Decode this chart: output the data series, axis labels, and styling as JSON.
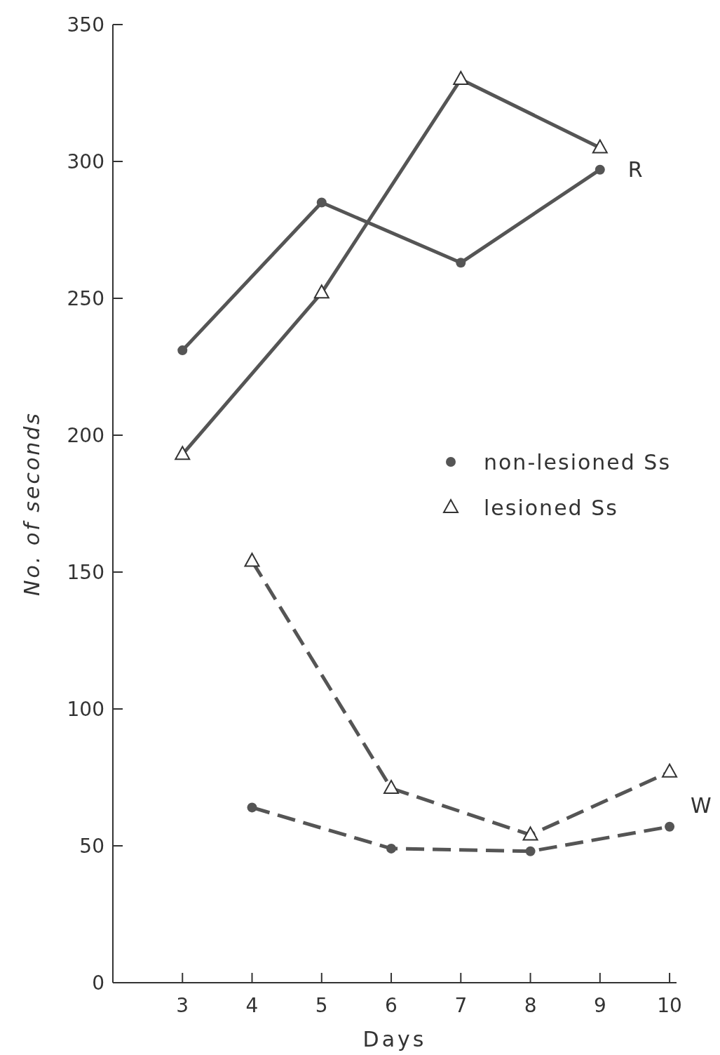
{
  "chart_data": {
    "type": "line",
    "xlabel": "Days",
    "ylabel": "No. of seconds",
    "xlim": [
      2,
      10.1
    ],
    "xticks": [
      3,
      4,
      5,
      6,
      7,
      8,
      9,
      10
    ],
    "ylim": [
      0,
      350
    ],
    "yticks": [
      0,
      50,
      100,
      150,
      200,
      250,
      300,
      350
    ],
    "grid": false,
    "legend": "right",
    "series": [
      {
        "name": "non-lesioned Ss",
        "color": "#555555",
        "marker": "circle",
        "line_style": "solid",
        "x": [
          3,
          5,
          7,
          9
        ],
        "values": [
          231,
          285,
          263,
          297
        ]
      },
      {
        "name": "lesioned Ss",
        "color": "#555555",
        "marker": "triangle",
        "line_style": "solid",
        "x": [
          3,
          5,
          7,
          9
        ],
        "values": [
          193,
          252,
          330,
          305
        ]
      },
      {
        "color": "#555555",
        "marker": "triangle",
        "line_style": "dashed",
        "x": [
          4,
          6,
          8,
          10
        ],
        "values": [
          154,
          71,
          54,
          77
        ]
      },
      {
        "color": "#555555",
        "marker": "circle",
        "line_style": "dashed",
        "x": [
          4,
          6,
          8,
          10
        ],
        "values": [
          64,
          49,
          48,
          57
        ]
      }
    ],
    "annotations": [
      {
        "text": "R",
        "x": 9,
        "y": 297
      },
      {
        "text": "W",
        "x": 10,
        "y": 57
      }
    ]
  }
}
